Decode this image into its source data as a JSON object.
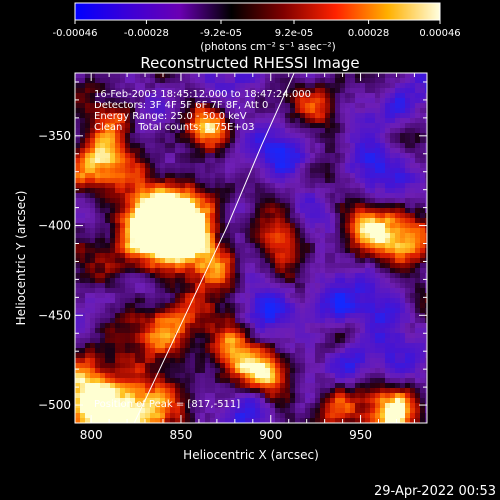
{
  "colorbar": {
    "tick_labels": [
      "-0.00046",
      "-0.00028",
      "-9.2e-05",
      "9.2e-05",
      "0.00028",
      "0.00046"
    ],
    "tick_values": [
      -0.00046,
      -0.00028,
      -9.2e-05,
      9.2e-05,
      0.00028,
      0.00046
    ],
    "range": [
      -0.00046,
      0.00046
    ],
    "unit_label": "(photons cm⁻² s⁻¹ asec⁻²)",
    "colors": [
      "#0000ff",
      "#3a00d8",
      "#6a00b4",
      "#000000",
      "#800000",
      "#ff2200",
      "#ffb000",
      "#ffffe0"
    ]
  },
  "chart_data": {
    "type": "heatmap",
    "title": "Reconstructed RHESSI Image",
    "xlabel": "Heliocentric X (arcsec)",
    "ylabel": "Heliocentric Y (arcsec)",
    "xlim": [
      791,
      987
    ],
    "ylim": [
      -510,
      -315
    ],
    "x_ticks": [
      800,
      850,
      900,
      950
    ],
    "y_ticks": [
      -350,
      -400,
      -450,
      -500
    ],
    "x_tick_labels": [
      "800",
      "850",
      "900",
      "950"
    ],
    "y_tick_labels": [
      "−350",
      "−400",
      "−450",
      "−500"
    ],
    "annotations": [
      "16-Feb-2003 18:45:12.000 to 18:47:24.000",
      "Detectors: 3F 4F 5F 6F 7F 8F, Att 0",
      "Energy Range: 25.0 - 50.0 keV",
      "Clean     Total counts: 1.75E+03"
    ],
    "peak_label": "Position of Peak = [817,-511]",
    "peak": [
      817,
      -511
    ],
    "limb_curve": [
      [
        824,
        -510
      ],
      [
        850,
        -455
      ],
      [
        876,
        -400
      ],
      [
        895,
        -355
      ],
      [
        913,
        -315
      ]
    ],
    "grid": false,
    "hot_spots": [
      {
        "x": 835,
        "y": -403,
        "r": 18,
        "v": 1.0
      },
      {
        "x": 850,
        "y": -395,
        "r": 14,
        "v": 0.9
      },
      {
        "x": 820,
        "y": -505,
        "r": 16,
        "v": 1.0
      },
      {
        "x": 800,
        "y": -365,
        "r": 12,
        "v": 0.75
      },
      {
        "x": 798,
        "y": -490,
        "r": 13,
        "v": 0.8
      },
      {
        "x": 845,
        "y": -460,
        "r": 12,
        "v": 0.7
      },
      {
        "x": 870,
        "y": -420,
        "r": 10,
        "v": 0.6
      },
      {
        "x": 880,
        "y": -470,
        "r": 11,
        "v": 0.65
      },
      {
        "x": 905,
        "y": -405,
        "r": 10,
        "v": 0.6
      },
      {
        "x": 955,
        "y": -400,
        "r": 12,
        "v": 0.6
      },
      {
        "x": 980,
        "y": -410,
        "r": 12,
        "v": 0.7
      },
      {
        "x": 935,
        "y": -500,
        "r": 10,
        "v": 0.65
      },
      {
        "x": 970,
        "y": -505,
        "r": 12,
        "v": 0.75
      },
      {
        "x": 930,
        "y": -335,
        "r": 11,
        "v": 0.5
      },
      {
        "x": 815,
        "y": -340,
        "r": 9,
        "v": 0.45
      },
      {
        "x": 865,
        "y": -345,
        "r": 9,
        "v": 0.45
      },
      {
        "x": 900,
        "y": -485,
        "r": 10,
        "v": 0.55
      }
    ],
    "cold_spots": [
      {
        "x": 955,
        "y": -365,
        "r": 9,
        "v": -0.85
      },
      {
        "x": 935,
        "y": -445,
        "r": 8,
        "v": -0.8
      },
      {
        "x": 965,
        "y": -450,
        "r": 9,
        "v": -0.75
      },
      {
        "x": 895,
        "y": -445,
        "r": 7,
        "v": -0.7
      },
      {
        "x": 945,
        "y": -475,
        "r": 8,
        "v": -0.85
      },
      {
        "x": 910,
        "y": -360,
        "r": 8,
        "v": -0.7
      },
      {
        "x": 880,
        "y": -390,
        "r": 7,
        "v": -0.6
      },
      {
        "x": 970,
        "y": -335,
        "r": 7,
        "v": -0.7
      },
      {
        "x": 890,
        "y": -500,
        "r": 7,
        "v": -0.65
      }
    ]
  },
  "timestamp": "29-Apr-2022 00:53"
}
